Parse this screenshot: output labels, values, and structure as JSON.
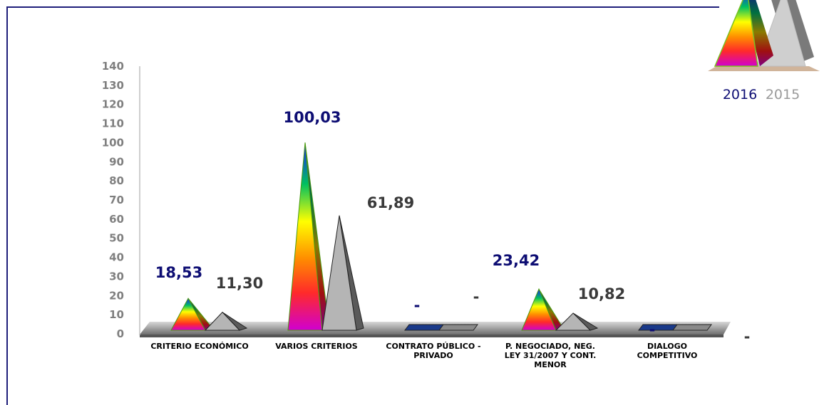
{
  "chart_data": {
    "type": "bar",
    "title": "",
    "xlabel": "",
    "ylabel": "",
    "ylim": [
      0,
      140
    ],
    "yticks": [
      "0",
      "10",
      "20",
      "30",
      "40",
      "50",
      "60",
      "70",
      "80",
      "90",
      "100",
      "110",
      "120",
      "130",
      "140"
    ],
    "categories": [
      [
        "CRITERIO ECONÓMICO"
      ],
      [
        "VARIOS CRITERIOS"
      ],
      [
        "CONTRATO PÚBLICO -",
        "PRIVADO"
      ],
      [
        "P. NEGOCIADO, NEG.",
        "LEY 31/2007 Y CONT.",
        "MENOR"
      ],
      [
        "DIALOGO",
        "COMPETITIVO"
      ]
    ],
    "series": [
      {
        "name": "2016",
        "values": [
          18.53,
          100.03,
          0,
          23.42,
          0
        ],
        "labels": [
          "18,53",
          "100,03",
          "-",
          "23,42",
          "-"
        ],
        "label_color": "#0d0d73"
      },
      {
        "name": "2015",
        "values": [
          11.3,
          61.89,
          0,
          10.82,
          0
        ],
        "labels": [
          "11,30",
          "61,89",
          "-",
          "10,82",
          "-"
        ],
        "label_color": "#3a3a3a"
      }
    ],
    "legend": {
      "placement": "top-right",
      "items": [
        "2016",
        "2015"
      ],
      "colors": [
        "#0d0d73",
        "#9a9a9a"
      ]
    },
    "grid": false
  }
}
